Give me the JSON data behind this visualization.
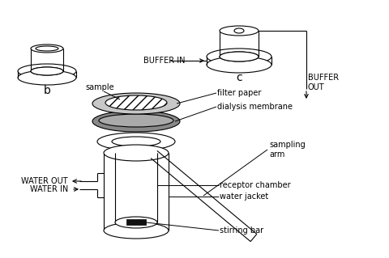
{
  "bg_color": "#ffffff",
  "line_color": "#000000",
  "labels": {
    "b": "b",
    "c": "c",
    "sample": "sample",
    "filter_paper": "filter paper",
    "dialysis_membrane": "dialysis membrane",
    "sampling_arm": "sampling\narm",
    "receptor_chamber": "receptor chamber",
    "water_jacket": "water jacket",
    "stirring_bar": "stirring bar",
    "water_out": "WATER OUT",
    "water_in": "WATER IN",
    "buffer_in": "BUFFER IN",
    "buffer_out": "BUFFER\nOUT"
  },
  "figsize": [
    4.8,
    3.19
  ],
  "dpi": 100
}
